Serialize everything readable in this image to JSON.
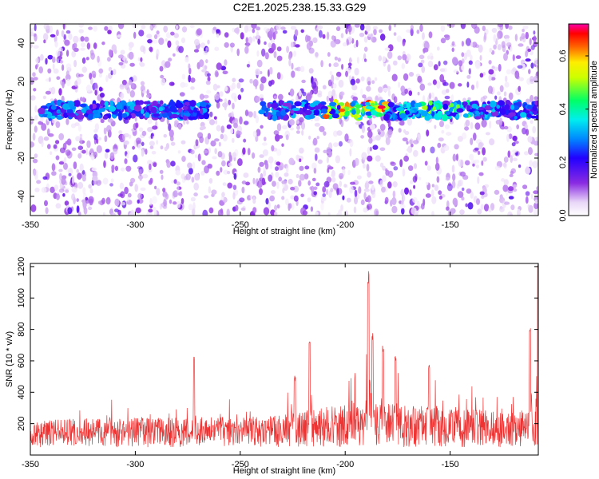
{
  "title": "C2E1.2025.238.15.33.G29",
  "chart_data": [
    {
      "type": "heatmap",
      "xlabel": "Height of straight line (km)",
      "ylabel": "Frequency (Hz)",
      "xlim": [
        -350,
        -108
      ],
      "ylim": [
        -50,
        50
      ],
      "xticks": [
        -350,
        -300,
        -250,
        -200,
        -150
      ],
      "yticks": [
        -40,
        -20,
        0,
        20,
        40
      ],
      "colorbar": {
        "label": "Normalized spectral amplitude",
        "range": [
          0,
          0.72
        ],
        "ticks": [
          0.0,
          0.2,
          0.4,
          0.6
        ],
        "tick_labels": [
          "0.0",
          "0.2",
          "0.4",
          "0.6"
        ],
        "colormap": "rainbow (white-violet-blue-cyan-green-yellow-red-magenta)"
      },
      "band": {
        "center_frequency_hz": 5,
        "half_width_hz": 4,
        "segments": [
          {
            "x_start": -345,
            "x_end": -265
          },
          {
            "x_start": -240,
            "x_end": -108
          }
        ],
        "peak_region_x": [
          -210,
          -180
        ],
        "peak_amplitude": 0.7
      },
      "grid": false
    },
    {
      "type": "line",
      "xlabel": "Height of straight line (km)",
      "ylabel": "SNR (10 * v/v)",
      "xlim": [
        -350,
        -108
      ],
      "ylim": [
        0,
        1220
      ],
      "xticks": [
        -350,
        -300,
        -250,
        -200,
        -150
      ],
      "yticks": [
        200,
        400,
        600,
        800,
        1000,
        1200
      ],
      "series": [
        {
          "color": "#ee3333",
          "baseline_x": [
            -350,
            -300,
            -250,
            -220,
            -200,
            -150,
            -120,
            -108
          ],
          "baseline_y": [
            160,
            170,
            175,
            200,
            260,
            240,
            200,
            240
          ],
          "spikes": [
            {
              "x": -272,
              "y": 625
            },
            {
              "x": -224,
              "y": 510
            },
            {
              "x": -217,
              "y": 735
            },
            {
              "x": -189,
              "y": 1175
            },
            {
              "x": -187,
              "y": 790
            },
            {
              "x": -182,
              "y": 700
            },
            {
              "x": -176,
              "y": 650
            },
            {
              "x": -160,
              "y": 575
            },
            {
              "x": -112,
              "y": 840
            },
            {
              "x": -108,
              "y": 1220
            }
          ]
        }
      ],
      "grid": false
    }
  ]
}
